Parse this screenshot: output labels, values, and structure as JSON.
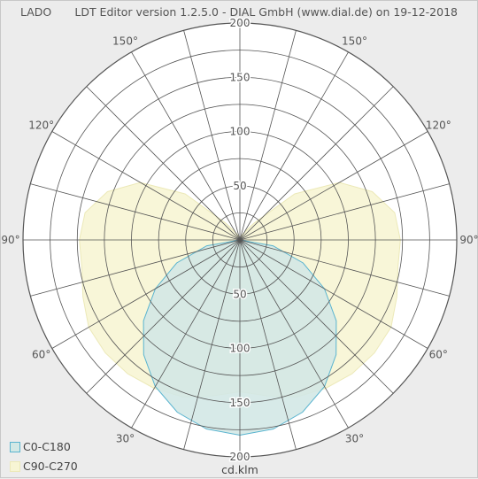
{
  "header": {
    "name": "LADO",
    "info": "LDT Editor version 1.2.5.0 - DIAL GmbH (www.dial.de) on 19-12-2018"
  },
  "chart_data": {
    "type": "polar",
    "unit": "cd.klm",
    "rmax": 200,
    "radial_ticks": [
      50,
      100,
      150,
      200
    ],
    "radial_minor_step": 25,
    "angle_step_deg": 15,
    "angle_labels": [
      {
        "deg": 30,
        "text": "30°"
      },
      {
        "deg": 60,
        "text": "60°"
      },
      {
        "deg": 90,
        "text": "90°"
      },
      {
        "deg": 120,
        "text": "120°"
      },
      {
        "deg": 150,
        "text": "150°"
      }
    ],
    "series": [
      {
        "name": "C90-C270",
        "color": "#f7f5d4",
        "stroke": "#ece9b8",
        "angles": [
          0,
          10,
          20,
          30,
          40,
          50,
          60,
          70,
          80,
          90,
          100,
          110,
          120,
          130,
          140,
          150,
          160,
          170,
          180
        ],
        "values": [
          140,
          146,
          154,
          158,
          161,
          162,
          161,
          154,
          148,
          148,
          145,
          130,
          106,
          66,
          20,
          8,
          4,
          2,
          0
        ]
      },
      {
        "name": "C0-C180",
        "color": "#d3e8e5",
        "stroke": "#5ab4cf",
        "angles": [
          0,
          10,
          20,
          30,
          40,
          50,
          60,
          70,
          80,
          90,
          100,
          110,
          120,
          130,
          140,
          150,
          160,
          170,
          180
        ],
        "values": [
          180,
          177,
          169,
          156,
          138,
          116,
          90,
          62,
          31,
          0,
          0,
          0,
          0,
          0,
          0,
          0,
          0,
          0,
          0
        ]
      }
    ],
    "legend": "bottom-left"
  }
}
